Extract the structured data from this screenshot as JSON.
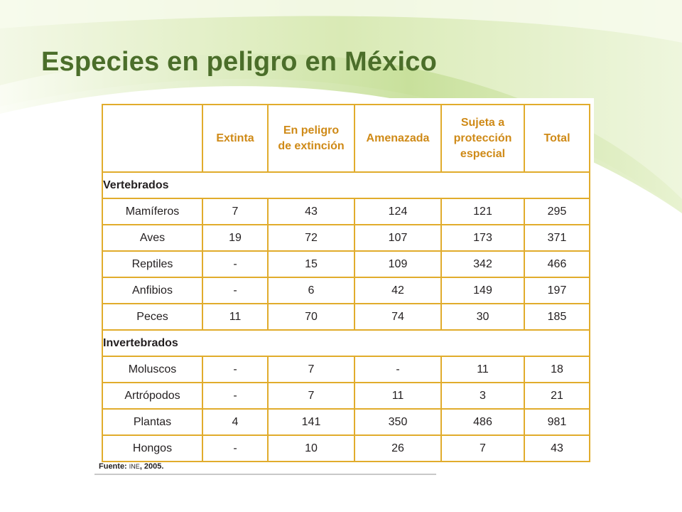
{
  "slide": {
    "title": "Especies en peligro en México"
  },
  "table": {
    "columns": [
      "Extinta",
      "En peligro de extinción",
      "Amenazada",
      "Sujeta a protección especial",
      "Total"
    ],
    "column_lines": [
      [
        "Extinta"
      ],
      [
        "En peligro",
        "de extinción"
      ],
      [
        "Amenazada"
      ],
      [
        "Sujeta a",
        "protección",
        "especial"
      ],
      [
        "Total"
      ]
    ],
    "sections": [
      {
        "label": "Vertebrados",
        "rows": [
          {
            "name": "Mamíferos",
            "values": [
              "7",
              "43",
              "124",
              "121",
              "295"
            ]
          },
          {
            "name": "Aves",
            "values": [
              "19",
              "72",
              "107",
              "173",
              "371"
            ]
          },
          {
            "name": "Reptiles",
            "values": [
              "-",
              "15",
              "109",
              "342",
              "466"
            ]
          },
          {
            "name": "Anfibios",
            "values": [
              "-",
              "6",
              "42",
              "149",
              "197"
            ]
          },
          {
            "name": "Peces",
            "values": [
              "11",
              "70",
              "74",
              "30",
              "185"
            ]
          }
        ]
      },
      {
        "label": "Invertebrados",
        "rows": [
          {
            "name": "Moluscos",
            "values": [
              "-",
              "7",
              "-",
              "11",
              "18"
            ]
          },
          {
            "name": "Artrópodos",
            "values": [
              "-",
              "7",
              "11",
              "3",
              "21"
            ]
          },
          {
            "name": "Plantas",
            "values": [
              "4",
              "141",
              "350",
              "486",
              "981"
            ]
          },
          {
            "name": "Hongos",
            "values": [
              "-",
              "10",
              "26",
              "7",
              "43"
            ]
          }
        ]
      }
    ]
  },
  "source": {
    "label": "Fuente:",
    "org": "INE",
    "year": ", 2005."
  },
  "colors": {
    "title": "#4b6e2a",
    "table_border": "#e1ac2c",
    "header_text": "#cf8a17",
    "swoosh_light": "#eef5dc",
    "swoosh_mid": "#cfe3a6"
  }
}
